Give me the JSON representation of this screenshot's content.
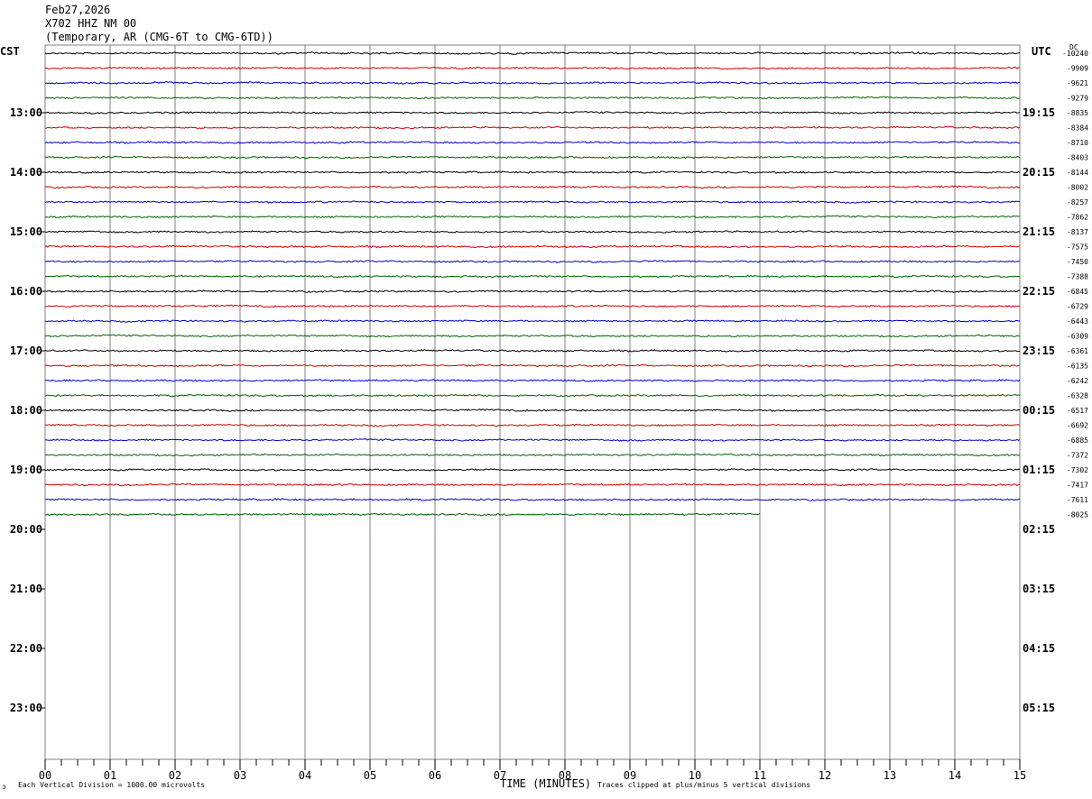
{
  "header": {
    "date": "Feb27,2026",
    "station": "X702 HHZ NM 00",
    "description": "(Temporary, AR (CMG-6T to CMG-6TD))"
  },
  "labels": {
    "left_zone": "CST",
    "right_zone": "UTC",
    "dc_label": "DC",
    "x_title": "TIME (MINUTES)",
    "scale_note": "Each Vertical Division = 1000.00 microvolts",
    "clip_note": "Traces clipped at plus/minus 5 vertical divisions",
    "corner_mark": "ↄ"
  },
  "colors": {
    "trace_cycle": [
      "#000000",
      "#d00000",
      "#0000c8",
      "#006400"
    ],
    "grid": "#808080"
  },
  "chart_data": {
    "type": "line",
    "xlabel": "TIME (MINUTES)",
    "x_ticks": [
      "00",
      "01",
      "02",
      "03",
      "04",
      "05",
      "06",
      "07",
      "08",
      "09",
      "10",
      "11",
      "12",
      "13",
      "14",
      "15"
    ],
    "xlim": [
      0,
      15
    ],
    "traces_per_hour": 4,
    "hour_labels_local": [
      "13:00",
      "14:00",
      "15:00",
      "16:00",
      "17:00",
      "18:00",
      "19:00",
      "20:00",
      "21:00",
      "22:00",
      "23:00"
    ],
    "hour_labels_utc": [
      "19:15",
      "20:15",
      "21:15",
      "22:15",
      "23:15",
      "00:15",
      "01:15",
      "02:15",
      "03:15",
      "04:15",
      "05:15"
    ],
    "dc_offsets": [
      -10240,
      -9909,
      -9621,
      -9279,
      -8835,
      -8384,
      -8710,
      -8403,
      -8144,
      -8002,
      -8257,
      -7862,
      -8137,
      -7575,
      -7450,
      -7388,
      -6845,
      -6729,
      -6443,
      -6309,
      -6361,
      -6135,
      -6242,
      -6328,
      -6517,
      -6692,
      -6885,
      -7372,
      -7302,
      -7417,
      -7611,
      -8025
    ],
    "last_trace_end_minute": 11
  }
}
